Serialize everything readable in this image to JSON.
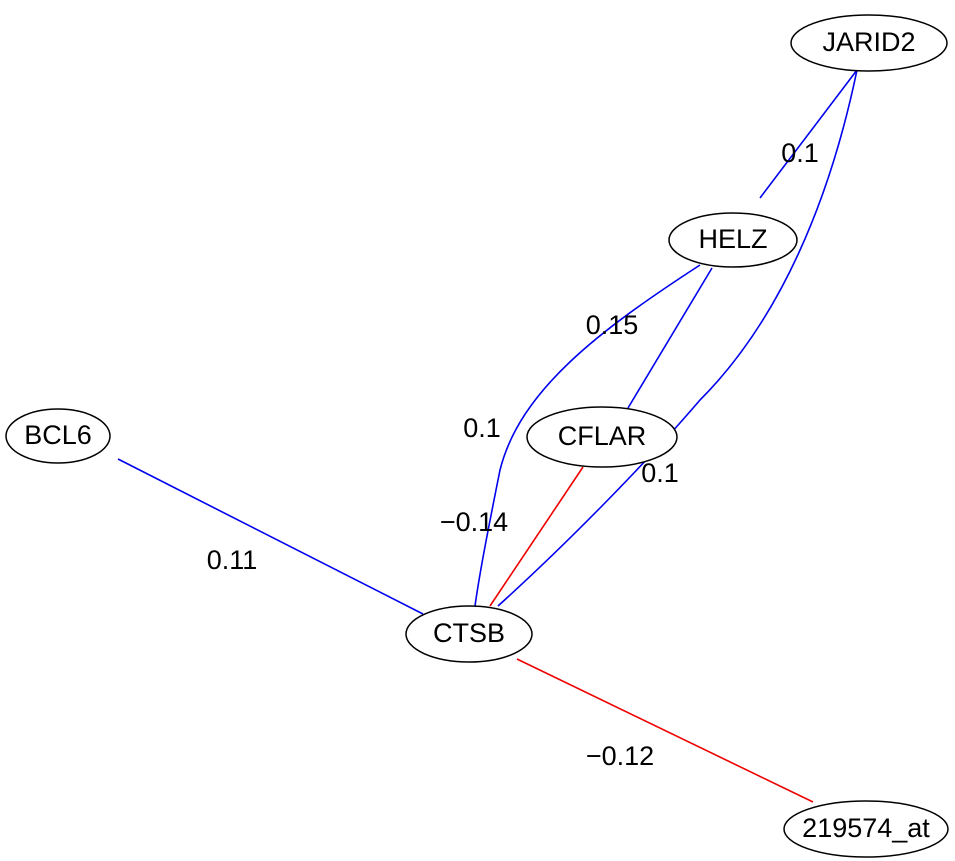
{
  "nodes": [
    {
      "label": "JARID2"
    },
    {
      "label": "HELZ"
    },
    {
      "label": "CFLAR"
    },
    {
      "label": "BCL6"
    },
    {
      "label": "CTSB"
    },
    {
      "label": "219574_at"
    }
  ],
  "edges": [
    {
      "from": "JARID2",
      "to": "HELZ",
      "label": "0.1",
      "color": "#0000ee"
    },
    {
      "from": "JARID2",
      "to": "CTSB",
      "label": "0.1",
      "color": "#0000ee"
    },
    {
      "from": "HELZ",
      "to": "CTSB",
      "label": "0.1",
      "color": "#0000ee"
    },
    {
      "from": "HELZ",
      "to": "CFLAR",
      "label": "0.15",
      "color": "#0000ee"
    },
    {
      "from": "CFLAR",
      "to": "CTSB",
      "label": "−0.14",
      "color": "#ee0000"
    },
    {
      "from": "BCL6",
      "to": "CTSB",
      "label": "0.11",
      "color": "#0000ee"
    },
    {
      "from": "CTSB",
      "to": "219574_at",
      "label": "−0.12",
      "color": "#ee0000"
    }
  ]
}
